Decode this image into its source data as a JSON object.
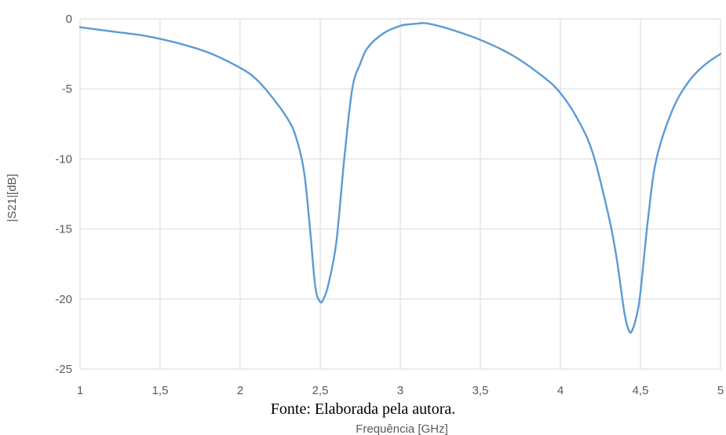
{
  "chart_data": {
    "type": "line",
    "title": "",
    "xlabel": "Frequência [GHz]",
    "ylabel": "|S21|[dB]",
    "xlim": [
      1,
      5
    ],
    "ylim": [
      -25,
      0
    ],
    "x_ticks": [
      1,
      1.5,
      2,
      2.5,
      3,
      3.5,
      4,
      4.5,
      5
    ],
    "x_tick_labels": [
      "1",
      "1,5",
      "2",
      "2,5",
      "3",
      "3,5",
      "4",
      "4,5",
      "5"
    ],
    "y_ticks": [
      0,
      -5,
      -10,
      -15,
      -20,
      -25
    ],
    "y_tick_labels": [
      "0",
      "-5",
      "-10",
      "-15",
      "-20",
      "-25"
    ],
    "grid": true,
    "legend": false,
    "series": [
      {
        "color": "#5B9BD5",
        "x": [
          1.0,
          1.2,
          1.4,
          1.6,
          1.8,
          2.0,
          2.1,
          2.2,
          2.3,
          2.35,
          2.4,
          2.44,
          2.47,
          2.5,
          2.52,
          2.55,
          2.6,
          2.65,
          2.7,
          2.75,
          2.8,
          2.9,
          3.0,
          3.05,
          3.1,
          3.15,
          3.2,
          3.3,
          3.5,
          3.7,
          3.9,
          4.0,
          4.1,
          4.2,
          4.3,
          4.35,
          4.4,
          4.43,
          4.45,
          4.48,
          4.5,
          4.55,
          4.6,
          4.7,
          4.8,
          4.9,
          5.0
        ],
        "y": [
          -0.6,
          -0.9,
          -1.2,
          -1.7,
          -2.4,
          -3.5,
          -4.3,
          -5.6,
          -7.2,
          -8.5,
          -11.0,
          -15.5,
          -19.2,
          -20.2,
          -20.0,
          -19.0,
          -16.0,
          -10.0,
          -5.0,
          -3.2,
          -2.0,
          -1.0,
          -0.5,
          -0.4,
          -0.35,
          -0.3,
          -0.4,
          -0.7,
          -1.5,
          -2.6,
          -4.2,
          -5.3,
          -7.0,
          -9.5,
          -14.0,
          -17.0,
          -21.0,
          -22.3,
          -22.2,
          -21.0,
          -19.5,
          -14.0,
          -10.0,
          -6.5,
          -4.5,
          -3.3,
          -2.5
        ]
      }
    ]
  },
  "caption": "Fonte:  Elaborada pela autora."
}
